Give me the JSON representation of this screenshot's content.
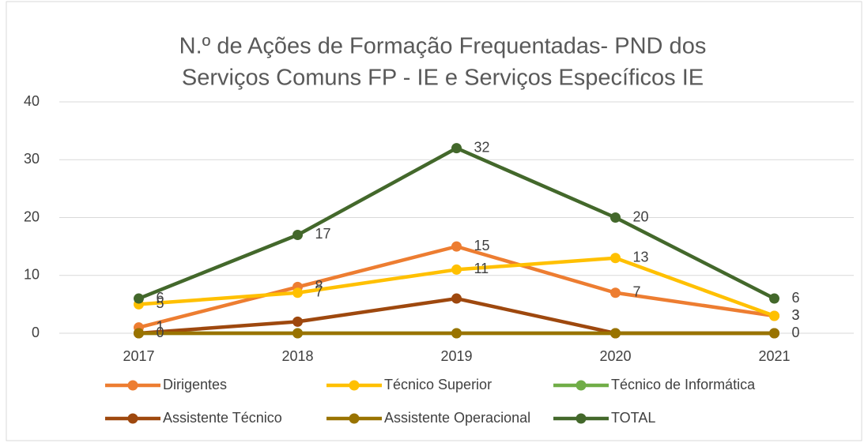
{
  "chart_data": {
    "type": "line",
    "title": [
      "N.º de Ações de Formação Frequentadas- PND dos",
      "Serviços Comuns FP - IE e Serviços Específicos IE"
    ],
    "categories": [
      "2017",
      "2018",
      "2019",
      "2020",
      "2021"
    ],
    "ylim": [
      0,
      40
    ],
    "yticks": [
      0,
      10,
      20,
      30,
      40
    ],
    "grid": true,
    "series": [
      {
        "name": "Dirigentes",
        "color": "#ED7D31",
        "values": [
          1,
          8,
          15,
          7,
          3
        ],
        "data_labels": true
      },
      {
        "name": "Técnico Superior",
        "color": "#FFC000",
        "values": [
          5,
          7,
          11,
          13,
          3
        ],
        "data_labels": true
      },
      {
        "name": "Técnico de Informática",
        "color": "#70AD47",
        "values": [
          0,
          0,
          0,
          0,
          0
        ]
      },
      {
        "name": "Assistente Técnico",
        "color": "#9E480E",
        "values": [
          0,
          2,
          6,
          0,
          0
        ]
      },
      {
        "name": "Assistente Operacional",
        "color": "#997300",
        "values": [
          0,
          0,
          0,
          0,
          0
        ],
        "value_labels": [
          "0",
          null,
          null,
          null,
          "0"
        ]
      },
      {
        "name": "TOTAL",
        "color": "#43682B",
        "values": [
          6,
          17,
          32,
          20,
          6
        ],
        "data_labels": true
      }
    ]
  }
}
